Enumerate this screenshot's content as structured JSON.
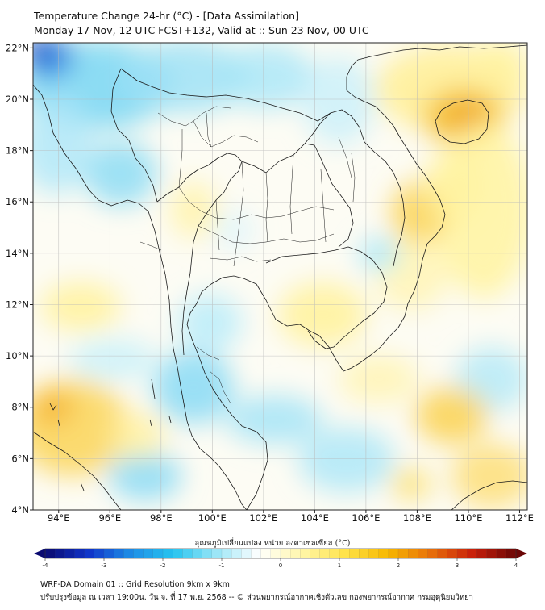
{
  "header": {
    "title_line1": "Temperature Change 24-hr (°C) - [Data Assimilation]",
    "title_line2": "Monday 17 Nov, 12 UTC FCST+132, Valid at :: Sun 23 Nov, 00 UTC"
  },
  "map": {
    "lon_labels": [
      "94°E",
      "96°E",
      "98°E",
      "100°E",
      "102°E",
      "104°E",
      "106°E",
      "108°E",
      "110°E",
      "112°E"
    ],
    "lon_values": [
      94,
      96,
      98,
      100,
      102,
      104,
      106,
      108,
      110,
      112
    ],
    "lat_labels": [
      "22°N",
      "20°N",
      "18°N",
      "16°N",
      "14°N",
      "12°N",
      "10°N",
      "8°N",
      "6°N",
      "4°N"
    ],
    "lat_values": [
      22,
      20,
      18,
      16,
      14,
      12,
      10,
      8,
      6,
      4
    ],
    "lon_range": [
      93,
      112.3
    ],
    "lat_range": [
      4,
      22.2
    ]
  },
  "colorbar": {
    "title": "อุณหภูมิเปลี่ยนแปลง หน่วย องศาเซลเซียส (°C)",
    "tick_labels": [
      "-4",
      "-3",
      "-2",
      "-1",
      "0",
      "1",
      "2",
      "3",
      "4"
    ],
    "tick_values": [
      -4,
      -3,
      -2,
      -1,
      0,
      1,
      2,
      3,
      4
    ],
    "range": [
      -4,
      4
    ],
    "colors": [
      "#0a0a70",
      "#1033c8",
      "#1e8de6",
      "#27c4ef",
      "#9be6f7",
      "#ffffff",
      "#fff6a8",
      "#ffe34a",
      "#f7b800",
      "#e8700a",
      "#c81e0a",
      "#6a0606"
    ]
  },
  "footer": {
    "line1": "WRF-DA Domain 01 :: Grid Resolution 9km x 9km",
    "line2": "ปรับปรุงข้อมูล ณ เวลา 19:00น. วัน จ. ที่ 17 พ.ย. 2568 -- © ส่วนพยากรณ์อากาศเชิงตัวเลข กองพยากรณ์อากาศ กรมอุตุนิยมวิทยา"
  }
}
